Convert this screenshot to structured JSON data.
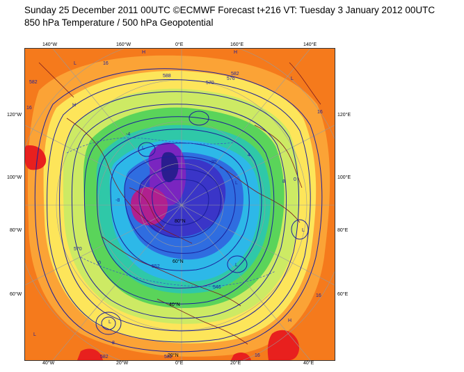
{
  "header": {
    "title": "Sunday 25 December 2011 00UTC ©ECMWF Forecast t+216 VT: Tuesday 3 January 2012 00UTC",
    "subtitle": "850 hPa Temperature / 500 hPa Geopotential"
  },
  "frame_labels": {
    "top": [
      "140°W",
      "160°W",
      "0°E",
      "160°E",
      "140°E"
    ],
    "bottom": [
      "40°W",
      "20°W",
      "0°E",
      "20°E",
      "40°E"
    ],
    "left": [
      "120°W",
      "100°W",
      "80°W",
      "60°W"
    ],
    "right": [
      "120°E",
      "100°E",
      "80°E",
      "60°E"
    ]
  },
  "interior_labels": {
    "lat": [
      "80°N",
      "60°N",
      "40°N",
      "20°N"
    ],
    "contours": [
      "570",
      "576",
      "582",
      "588",
      "552",
      "546",
      "540",
      "528",
      "516",
      "510",
      "504",
      "498",
      "16",
      "-20",
      "-8",
      "8",
      "0",
      "-4",
      "4"
    ],
    "pressure_marks": [
      "H",
      "L"
    ]
  },
  "colors": {
    "warm": "#f57a1c",
    "orange": "#fba336",
    "yellow": "#fde55a",
    "lightgreen": "#cdea64",
    "green": "#5ad45a",
    "teal": "#2fc8a8",
    "cyan": "#2db8e8",
    "blue": "#2f6de0",
    "deepblue": "#3a35c8",
    "purple": "#7a25c0",
    "magenta": "#b0208f",
    "red": "#e8201e",
    "contour": "#1b1f9a",
    "coast": "#7a1a20"
  }
}
